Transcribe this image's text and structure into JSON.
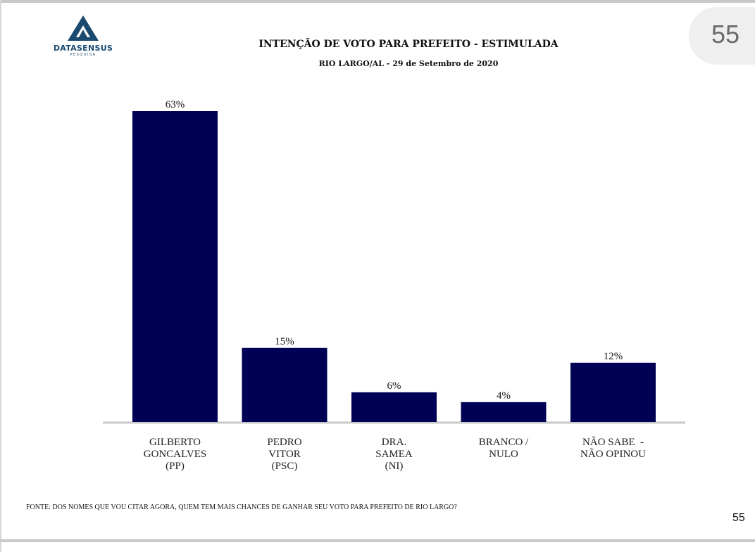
{
  "header": {
    "logo_text": "DATASENSUS",
    "logo_subtext": "PESQUISA",
    "title": "INTENÇÃO DE VOTO PARA PREFEITO - ESTIMULADA",
    "subtitle": "RIO LARGO/AL - 29 de Setembro de 2020",
    "page_badge": "55"
  },
  "footer": {
    "source": "FONTE: DOS NOMES QUE VOU CITAR AGORA, QUEM TEM MAIS CHANCES DE GANHAR SEU VOTO PARA PREFEITO DE RIO LARGO?",
    "page_number": "55"
  },
  "colors": {
    "bar": "#000055",
    "baseline": "#c8c8c8",
    "logo": "#1a4a70"
  },
  "chart_data": {
    "type": "bar",
    "title": "INTENÇÃO DE VOTO PARA PREFEITO - ESTIMULADA",
    "subtitle": "RIO LARGO/AL - 29 de Setembro de 2020",
    "xlabel": "",
    "ylabel": "",
    "ylim": [
      0,
      63
    ],
    "grid": false,
    "categories": [
      [
        "GILBERTO",
        "GONCALVES",
        "(PP)"
      ],
      [
        "PEDRO",
        "VITOR",
        "(PSC)"
      ],
      [
        "DRA.",
        "SAMEA",
        "(NI)"
      ],
      [
        "BRANCO /",
        "NULO"
      ],
      [
        "NÃO SABE  -",
        "NÃO OPINOU"
      ]
    ],
    "values": [
      63,
      15,
      6,
      4,
      12
    ],
    "value_labels": [
      "63%",
      "15%",
      "6%",
      "4%",
      "12%"
    ]
  }
}
